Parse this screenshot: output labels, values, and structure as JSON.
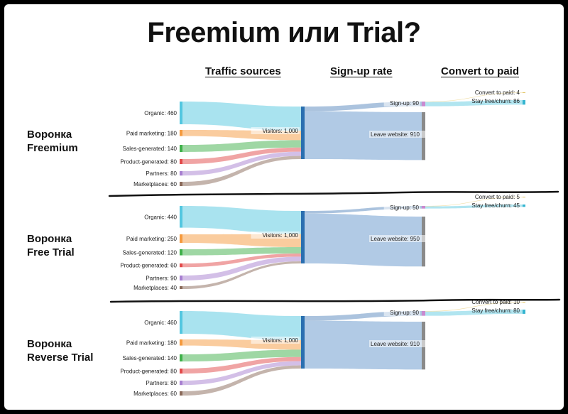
{
  "title": "Freemium или Trial?",
  "column_headers": {
    "traffic_sources": "Traffic sources",
    "sign_up_rate": "Sign-up rate",
    "convert_to_paid": "Convert to paid"
  },
  "colors": {
    "Organic": "#53c7e0",
    "Paid marketing": "#f59a3e",
    "Sales-generated": "#3fb04a",
    "Product-generated": "#e24a4a",
    "Partners": "#a77fd0",
    "Marketplaces": "#8a6a5a",
    "visitors_bar": "#2a6fb0",
    "leave_bar": "#8a8a8a",
    "signup_bar": "#c98ad0",
    "stay_bar": "#35b5d0",
    "paid_bar": "#e3c463",
    "leave_band": "#a9c4e2",
    "signup_band": "#9cb9d8",
    "stay_band": "#a8e2ee",
    "paid_band": "#efdca0"
  },
  "funnels": [
    {
      "name": "Воронка Freemium",
      "name_lines": [
        "Воронка",
        "Freemium"
      ],
      "sources": [
        {
          "label": "Organic",
          "value": 460
        },
        {
          "label": "Paid marketing",
          "value": 180
        },
        {
          "label": "Sales-generated",
          "value": 140
        },
        {
          "label": "Product-generated",
          "value": 80
        },
        {
          "label": "Partners",
          "value": 80
        },
        {
          "label": "Marketplaces",
          "value": 60
        }
      ],
      "visitors": {
        "label": "Visitors",
        "value": "1,000"
      },
      "leave_website": {
        "label": "Leave website",
        "value": 910
      },
      "sign_up": {
        "label": "Sign-up",
        "value": 90
      },
      "convert_to_paid": {
        "label": "Convert to paid",
        "value": 4
      },
      "stay_free_churn": {
        "label": "Stay free/churn",
        "value": 86
      }
    },
    {
      "name": "Воронка Free Trial",
      "name_lines": [
        "Воронка",
        "Free Trial"
      ],
      "sources": [
        {
          "label": "Organic",
          "value": 440
        },
        {
          "label": "Paid marketing",
          "value": 250
        },
        {
          "label": "Sales-generated",
          "value": 120
        },
        {
          "label": "Product-generated",
          "value": 60
        },
        {
          "label": "Partners",
          "value": 90
        },
        {
          "label": "Marketplaces",
          "value": 40
        }
      ],
      "visitors": {
        "label": "Visitors",
        "value": "1,000"
      },
      "leave_website": {
        "label": "Leave website",
        "value": 950
      },
      "sign_up": {
        "label": "Sign-up",
        "value": 50
      },
      "convert_to_paid": {
        "label": "Convert to paid",
        "value": 5
      },
      "stay_free_churn": {
        "label": "Stay free/churn",
        "value": 45
      }
    },
    {
      "name": "Воронка Reverse Trial",
      "name_lines": [
        "Воронка",
        "Reverse Trial"
      ],
      "sources": [
        {
          "label": "Organic",
          "value": 460
        },
        {
          "label": "Paid marketing",
          "value": 180
        },
        {
          "label": "Sales-generated",
          "value": 140
        },
        {
          "label": "Product-generated",
          "value": 80
        },
        {
          "label": "Partners",
          "value": 80
        },
        {
          "label": "Marketplaces",
          "value": 60
        }
      ],
      "visitors": {
        "label": "Visitors",
        "value": "1,000"
      },
      "leave_website": {
        "label": "Leave website",
        "value": 910
      },
      "sign_up": {
        "label": "Sign-up",
        "value": 90
      },
      "convert_to_paid": {
        "label": "Convert to paid",
        "value": 10
      },
      "stay_free_churn": {
        "label": "Stay free/churn",
        "value": 80
      }
    }
  ]
}
